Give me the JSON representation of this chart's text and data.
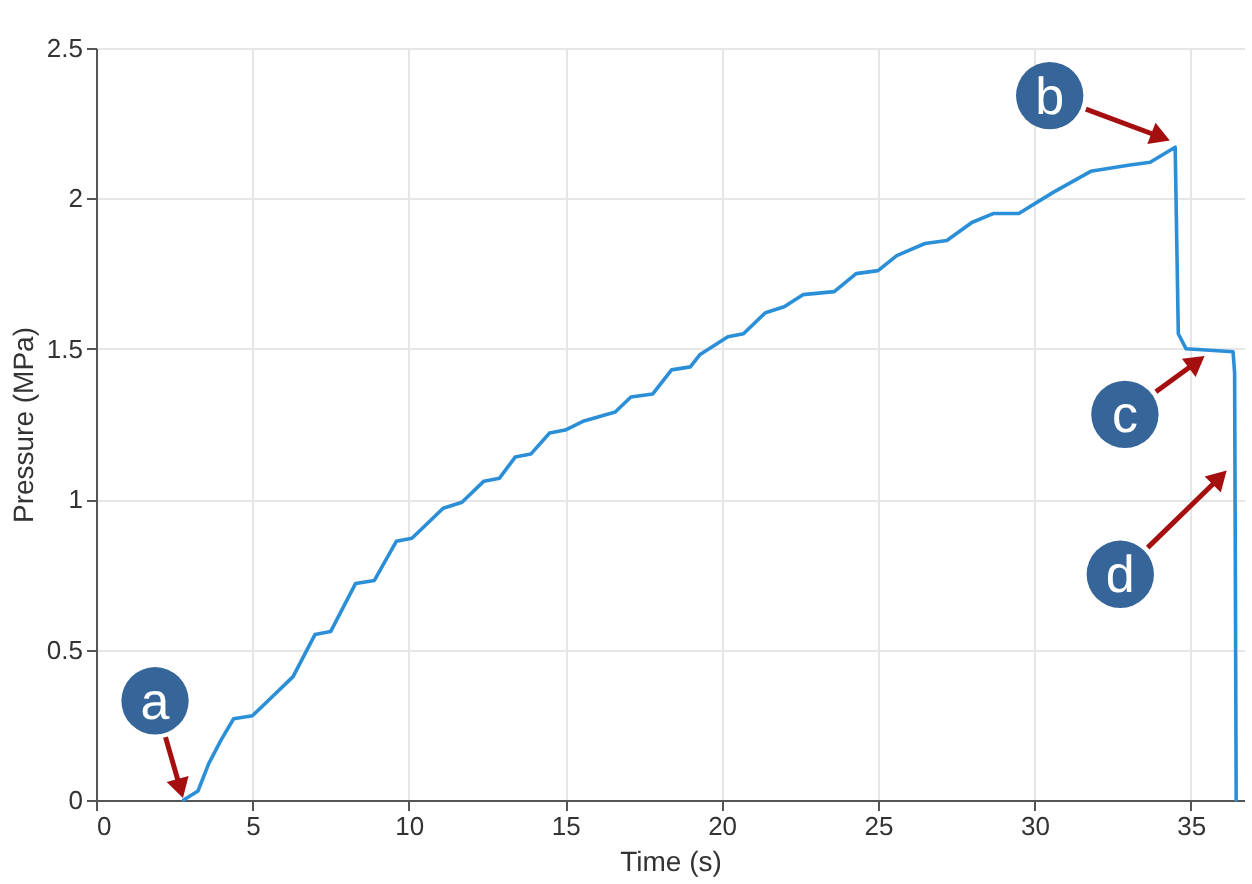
{
  "chart_data": {
    "type": "line",
    "xlabel": "Time (s)",
    "ylabel": "Pressure (MPa)",
    "xlim": [
      0,
      36.7
    ],
    "ylim": [
      0,
      2.5
    ],
    "xticks": [
      0,
      5,
      10,
      15,
      20,
      25,
      30,
      35
    ],
    "yticks": [
      0,
      0.5,
      1,
      1.5,
      2,
      2.5
    ],
    "grid": true,
    "line_style": "solid",
    "marker": "none",
    "series": [
      {
        "color": "#2b8fd8",
        "x": [
          2.8,
          3.26,
          3.6,
          4.0,
          4.4,
          5.0,
          5.6,
          6.3,
          7.0,
          7.5,
          8.3,
          8.9,
          9.6,
          10.1,
          11.1,
          11.7,
          12.4,
          12.9,
          13.4,
          13.9,
          14.5,
          15.0,
          15.6,
          16.6,
          17.1,
          17.8,
          18.4,
          19.0,
          19.3,
          20.2,
          20.7,
          21.4,
          22.0,
          22.6,
          23.6,
          24.3,
          25.0,
          25.6,
          26.5,
          27.2,
          28.0,
          28.7,
          29.5,
          30.6,
          31.8,
          33.0,
          33.7,
          34.5,
          34.6,
          34.85,
          36.35,
          36.4,
          36.45
        ],
        "values": [
          0,
          0.03,
          0.12,
          0.2,
          0.27,
          0.28,
          0.34,
          0.41,
          0.55,
          0.56,
          0.72,
          0.73,
          0.86,
          0.87,
          0.97,
          0.99,
          1.06,
          1.07,
          1.14,
          1.15,
          1.22,
          1.23,
          1.26,
          1.29,
          1.34,
          1.35,
          1.43,
          1.44,
          1.48,
          1.54,
          1.55,
          1.62,
          1.64,
          1.68,
          1.69,
          1.75,
          1.76,
          1.81,
          1.85,
          1.86,
          1.92,
          1.95,
          1.95,
          2.02,
          2.09,
          2.11,
          2.12,
          2.17,
          1.55,
          1.5,
          1.49,
          1.42,
          0
        ]
      }
    ],
    "annotations": [
      {
        "text": "a",
        "x": 2.8,
        "y": 0
      },
      {
        "text": "b",
        "x": 34.4,
        "y": 2.19
      },
      {
        "text": "c",
        "x": 35.5,
        "y": 1.48
      },
      {
        "text": "d",
        "x": 36.2,
        "y": 1.1
      }
    ]
  }
}
